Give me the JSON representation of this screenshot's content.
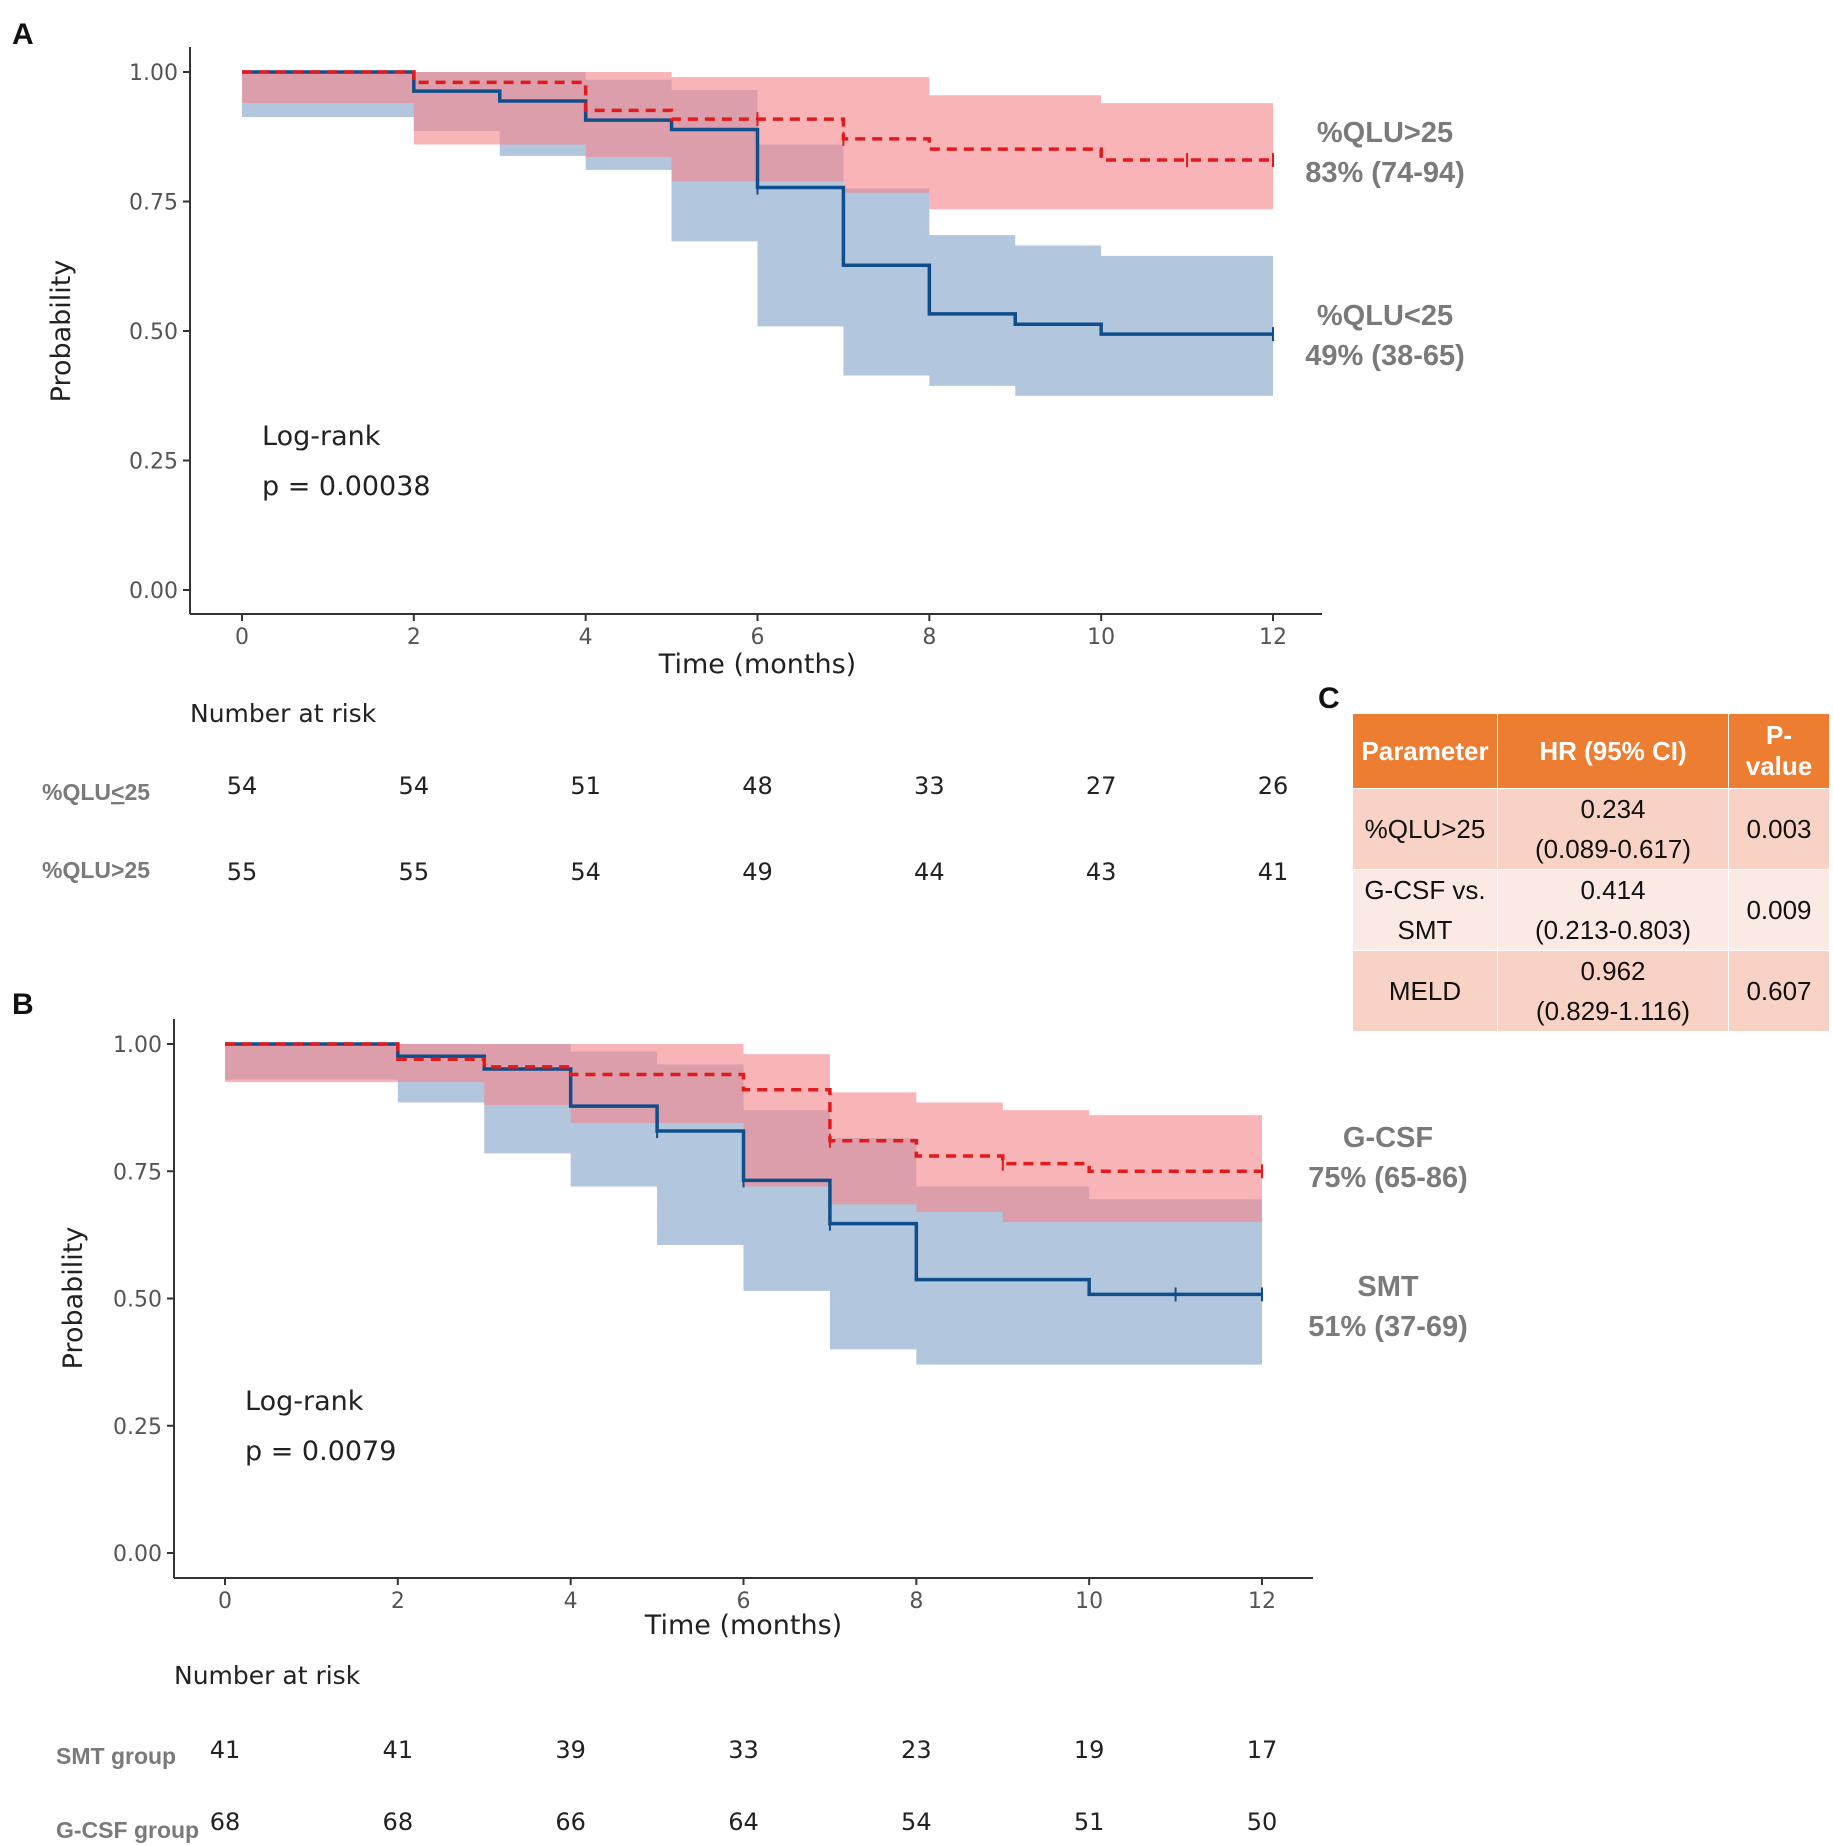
{
  "chart_data": [
    {
      "panel": "A",
      "type": "line",
      "subtype": "kaplan-meier",
      "xlabel": "Time (months)",
      "ylabel": "Probability",
      "xlim": [
        0,
        12
      ],
      "ylim": [
        0,
        1
      ],
      "x_ticks": [
        "0",
        "2",
        "4",
        "6",
        "8",
        "10",
        "12"
      ],
      "y_ticks": [
        "0.00",
        "0.25",
        "0.50",
        "0.75",
        "1.00"
      ],
      "annotation": {
        "line1": "Log-rank",
        "line2": "p = 0.00038"
      },
      "series": [
        {
          "name": "%QLU>25",
          "color": "#e31a1c",
          "band_color": "#f4868b",
          "linestyle": "dashed",
          "x": [
            0,
            2,
            4,
            5,
            7,
            8,
            10,
            12
          ],
          "y": [
            1.0,
            0.98,
            0.926,
            0.909,
            0.871,
            0.851,
            0.83,
            0.83
          ],
          "lower": [
            1.0,
            0.94,
            0.86,
            0.836,
            0.789,
            0.767,
            0.735,
            0.735
          ],
          "upper": [
            1.0,
            1.0,
            1.0,
            0.99,
            0.99,
            0.955,
            0.94,
            0.94
          ],
          "censor_x": [
            6,
            7,
            11,
            12
          ],
          "end_label": "%QLU>25",
          "end_value": "83% (74-94)"
        },
        {
          "name": "%QLU<25",
          "color": "#104e8b",
          "band_color": "#7a9cc6",
          "linestyle": "solid",
          "x": [
            0,
            2,
            3,
            4,
            5,
            6,
            7,
            8,
            9,
            10,
            12
          ],
          "y": [
            1.0,
            0.963,
            0.944,
            0.907,
            0.889,
            0.777,
            0.627,
            0.533,
            0.513,
            0.494,
            0.494
          ],
          "lower": [
            1.0,
            0.913,
            0.886,
            0.838,
            0.811,
            0.673,
            0.509,
            0.414,
            0.394,
            0.375,
            0.375
          ],
          "upper": [
            1.0,
            1.0,
            1.0,
            0.985,
            0.965,
            0.86,
            0.775,
            0.685,
            0.665,
            0.645,
            0.645
          ],
          "censor_x": [
            6,
            12
          ],
          "end_label": "%QLU<25",
          "end_value": "49% (38-65)"
        }
      ],
      "risk_table": {
        "title": "Number at risk",
        "times": [
          0,
          2,
          4,
          6,
          8,
          10,
          12
        ],
        "rows": [
          {
            "label_pre": "%QLU",
            "label_ul": "<",
            "label_post": "25",
            "values": [
              "54",
              "54",
              "51",
              "48",
              "33",
              "27",
              "26"
            ]
          },
          {
            "label_pre": "%QLU>25",
            "label_ul": "",
            "label_post": "",
            "values": [
              "55",
              "55",
              "54",
              "49",
              "44",
              "43",
              "41"
            ]
          }
        ]
      }
    },
    {
      "panel": "B",
      "type": "line",
      "subtype": "kaplan-meier",
      "xlabel": "Time (months)",
      "ylabel": "Probability",
      "xlim": [
        0,
        12
      ],
      "ylim": [
        0,
        1
      ],
      "x_ticks": [
        "0",
        "2",
        "4",
        "6",
        "8",
        "10",
        "12"
      ],
      "y_ticks": [
        "0.00",
        "0.25",
        "0.50",
        "0.75",
        "1.00"
      ],
      "annotation": {
        "line1": "Log-rank",
        "line2": "p = 0.0079"
      },
      "series": [
        {
          "name": "G-CSF",
          "color": "#e31a1c",
          "band_color": "#f4868b",
          "linestyle": "dashed",
          "x": [
            0,
            2,
            3,
            4,
            6,
            7,
            8,
            9,
            10,
            12
          ],
          "y": [
            1.0,
            0.97,
            0.955,
            0.94,
            0.91,
            0.81,
            0.78,
            0.765,
            0.75,
            0.75
          ],
          "lower": [
            1.0,
            0.925,
            0.925,
            0.88,
            0.845,
            0.72,
            0.685,
            0.67,
            0.65,
            0.65
          ],
          "upper": [
            1.0,
            1.0,
            1.0,
            1.0,
            0.98,
            0.905,
            0.885,
            0.87,
            0.86,
            0.86
          ],
          "censor_x": [
            7,
            9,
            12
          ],
          "end_label": "G-CSF",
          "end_value": "75% (65-86)"
        },
        {
          "name": "SMT",
          "color": "#104e8b",
          "band_color": "#7a9cc6",
          "linestyle": "solid",
          "x": [
            0,
            2,
            3,
            4,
            5,
            6,
            7,
            8,
            10,
            12
          ],
          "y": [
            1.0,
            0.976,
            0.951,
            0.878,
            0.829,
            0.732,
            0.647,
            0.537,
            0.508,
            0.508
          ],
          "lower": [
            1.0,
            0.93,
            0.885,
            0.785,
            0.72,
            0.605,
            0.515,
            0.4,
            0.37,
            0.37
          ],
          "upper": [
            1.0,
            1.0,
            1.0,
            0.985,
            0.96,
            0.87,
            0.815,
            0.72,
            0.695,
            0.695
          ],
          "censor_x": [
            5,
            6,
            7,
            11,
            12
          ],
          "end_label": "SMT",
          "end_value": "51% (37-69)"
        }
      ],
      "risk_table": {
        "title": "Number at risk",
        "times": [
          0,
          2,
          4,
          6,
          8,
          10,
          12
        ],
        "rows": [
          {
            "label_pre": "SMT group",
            "label_ul": "",
            "label_post": "",
            "values": [
              "41",
              "41",
              "39",
              "33",
              "23",
              "19",
              "17"
            ]
          },
          {
            "label_pre": "G-CSF group",
            "label_ul": "",
            "label_post": "",
            "values": [
              "68",
              "68",
              "66",
              "64",
              "54",
              "51",
              "50"
            ]
          }
        ]
      }
    },
    {
      "panel": "C",
      "type": "table",
      "headers": [
        "Parameter",
        "HR  (95% CI)",
        "P-value"
      ],
      "rows": [
        {
          "param": "%QLU>25",
          "param2": "",
          "hr": "0.234",
          "ci": "(0.089-0.617)",
          "p": "0.003"
        },
        {
          "param": "G-CSF vs.",
          "param2": "SMT",
          "hr": "0.414",
          "ci": "(0.213-0.803)",
          "p": "0.009"
        },
        {
          "param": "MELD",
          "param2": "",
          "hr": "0.962",
          "ci": "(0.829-1.116)",
          "p": "0.607"
        }
      ]
    }
  ]
}
